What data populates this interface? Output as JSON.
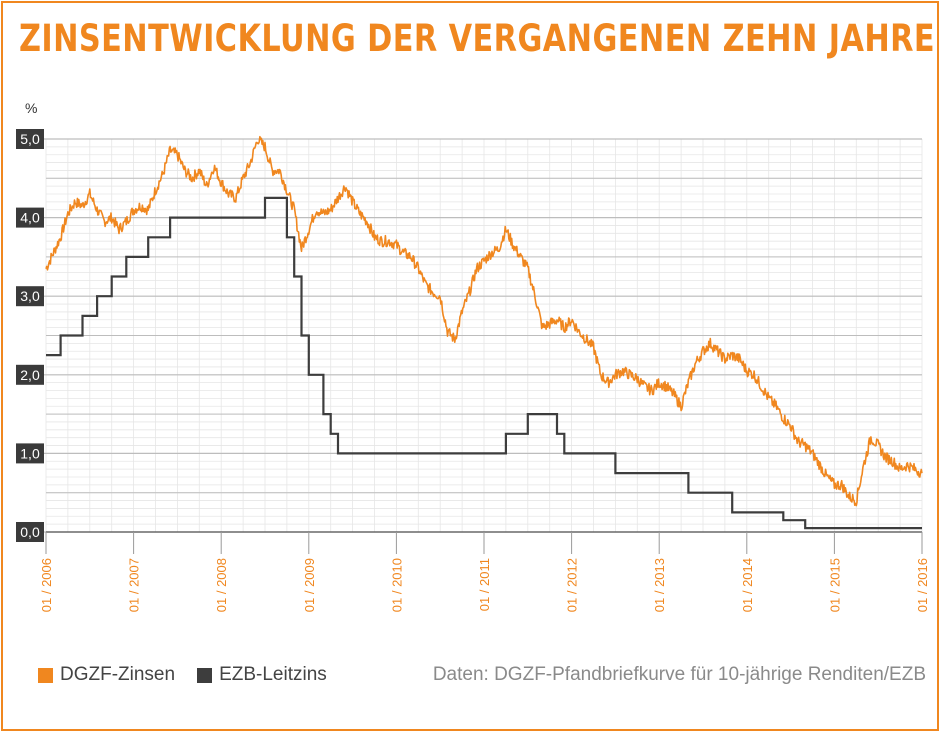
{
  "colors": {
    "accent": "#f0871f",
    "dgzf": "#f0871f",
    "ezb": "#3d3d3d",
    "grid_major": "#bdbdbd",
    "grid_minor": "#e6e6e6",
    "source_text": "#8a8a8a"
  },
  "chart_data": {
    "type": "line",
    "title": "ZINSENTWICKLUNG DER VERGANGENEN ZEHN JAHRE",
    "y_unit": "%",
    "ylim": [
      0,
      5
    ],
    "x_range": [
      "2006-01",
      "2016-01"
    ],
    "grid": true,
    "y_ticks": [
      "5,0",
      "4,0",
      "3,0",
      "2,0",
      "1,0",
      "0,0"
    ],
    "x_ticks": [
      "01 / 2006",
      "01 / 2007",
      "01 / 2008",
      "01 / 2009",
      "01 / 2010",
      "01 / 2011",
      "01 / 2012",
      "01 / 2013",
      "01 / 2014",
      "01 / 2015",
      "01 / 2016"
    ],
    "legend_position": "bottom-left",
    "series": [
      {
        "name": "DGZF-Zinsen",
        "kind": "line",
        "points": [
          [
            "2006-01",
            3.35
          ],
          [
            "2006-02",
            3.55
          ],
          [
            "2006-03",
            3.75
          ],
          [
            "2006-04",
            4.05
          ],
          [
            "2006-05",
            4.2
          ],
          [
            "2006-06",
            4.15
          ],
          [
            "2006-07",
            4.3
          ],
          [
            "2006-08",
            4.1
          ],
          [
            "2006-09",
            3.95
          ],
          [
            "2006-10",
            4.0
          ],
          [
            "2006-11",
            3.85
          ],
          [
            "2006-12",
            3.95
          ],
          [
            "2007-01",
            4.1
          ],
          [
            "2007-02",
            4.15
          ],
          [
            "2007-03",
            4.1
          ],
          [
            "2007-04",
            4.35
          ],
          [
            "2007-05",
            4.55
          ],
          [
            "2007-06",
            4.85
          ],
          [
            "2007-07",
            4.8
          ],
          [
            "2007-08",
            4.6
          ],
          [
            "2007-09",
            4.5
          ],
          [
            "2007-10",
            4.6
          ],
          [
            "2007-11",
            4.4
          ],
          [
            "2007-12",
            4.65
          ],
          [
            "2008-01",
            4.45
          ],
          [
            "2008-02",
            4.3
          ],
          [
            "2008-03",
            4.25
          ],
          [
            "2008-04",
            4.5
          ],
          [
            "2008-05",
            4.7
          ],
          [
            "2008-06",
            5.0
          ],
          [
            "2008-07",
            4.9
          ],
          [
            "2008-08",
            4.6
          ],
          [
            "2008-09",
            4.6
          ],
          [
            "2008-10",
            4.35
          ],
          [
            "2008-11",
            4.1
          ],
          [
            "2008-12",
            3.6
          ],
          [
            "2009-01",
            3.85
          ],
          [
            "2009-02",
            4.1
          ],
          [
            "2009-03",
            4.05
          ],
          [
            "2009-04",
            4.1
          ],
          [
            "2009-05",
            4.25
          ],
          [
            "2009-06",
            4.4
          ],
          [
            "2009-07",
            4.2
          ],
          [
            "2009-08",
            4.05
          ],
          [
            "2009-09",
            3.95
          ],
          [
            "2009-10",
            3.75
          ],
          [
            "2009-11",
            3.7
          ],
          [
            "2009-12",
            3.7
          ],
          [
            "2010-01",
            3.65
          ],
          [
            "2010-02",
            3.55
          ],
          [
            "2010-03",
            3.5
          ],
          [
            "2010-04",
            3.35
          ],
          [
            "2010-05",
            3.15
          ],
          [
            "2010-06",
            3.05
          ],
          [
            "2010-07",
            3.0
          ],
          [
            "2010-08",
            2.55
          ],
          [
            "2010-09",
            2.45
          ],
          [
            "2010-10",
            2.8
          ],
          [
            "2010-11",
            3.05
          ],
          [
            "2010-12",
            3.35
          ],
          [
            "2011-01",
            3.45
          ],
          [
            "2011-02",
            3.55
          ],
          [
            "2011-03",
            3.6
          ],
          [
            "2011-04",
            3.85
          ],
          [
            "2011-05",
            3.65
          ],
          [
            "2011-06",
            3.5
          ],
          [
            "2011-07",
            3.35
          ],
          [
            "2011-08",
            3.0
          ],
          [
            "2011-09",
            2.6
          ],
          [
            "2011-10",
            2.65
          ],
          [
            "2011-11",
            2.7
          ],
          [
            "2011-12",
            2.6
          ],
          [
            "2012-01",
            2.7
          ],
          [
            "2012-02",
            2.55
          ],
          [
            "2012-03",
            2.45
          ],
          [
            "2012-04",
            2.35
          ],
          [
            "2012-05",
            2.0
          ],
          [
            "2012-06",
            1.9
          ],
          [
            "2012-07",
            2.0
          ],
          [
            "2012-08",
            2.05
          ],
          [
            "2012-09",
            2.0
          ],
          [
            "2012-10",
            1.95
          ],
          [
            "2012-11",
            1.85
          ],
          [
            "2012-12",
            1.8
          ],
          [
            "2013-01",
            1.9
          ],
          [
            "2013-02",
            1.85
          ],
          [
            "2013-03",
            1.75
          ],
          [
            "2013-04",
            1.6
          ],
          [
            "2013-05",
            1.9
          ],
          [
            "2013-06",
            2.15
          ],
          [
            "2013-07",
            2.3
          ],
          [
            "2013-08",
            2.4
          ],
          [
            "2013-09",
            2.3
          ],
          [
            "2013-10",
            2.2
          ],
          [
            "2013-11",
            2.25
          ],
          [
            "2013-12",
            2.2
          ],
          [
            "2014-01",
            2.05
          ],
          [
            "2014-02",
            2.0
          ],
          [
            "2014-03",
            1.85
          ],
          [
            "2014-04",
            1.7
          ],
          [
            "2014-05",
            1.6
          ],
          [
            "2014-06",
            1.45
          ],
          [
            "2014-07",
            1.35
          ],
          [
            "2014-08",
            1.15
          ],
          [
            "2014-09",
            1.1
          ],
          [
            "2014-10",
            1.0
          ],
          [
            "2014-11",
            0.85
          ],
          [
            "2014-12",
            0.7
          ],
          [
            "2015-01",
            0.6
          ],
          [
            "2015-02",
            0.6
          ],
          [
            "2015-03",
            0.45
          ],
          [
            "2015-04",
            0.4
          ],
          [
            "2015-05",
            0.85
          ],
          [
            "2015-06",
            1.2
          ],
          [
            "2015-07",
            1.1
          ],
          [
            "2015-08",
            0.95
          ],
          [
            "2015-09",
            0.9
          ],
          [
            "2015-10",
            0.8
          ],
          [
            "2015-11",
            0.85
          ],
          [
            "2015-12",
            0.8
          ],
          [
            "2016-01",
            0.75
          ]
        ]
      },
      {
        "name": "EZB-Leitzins",
        "kind": "step",
        "points": [
          [
            "2006-01",
            2.25
          ],
          [
            "2006-03",
            2.5
          ],
          [
            "2006-06",
            2.75
          ],
          [
            "2006-08",
            3.0
          ],
          [
            "2006-10",
            3.25
          ],
          [
            "2006-12",
            3.5
          ],
          [
            "2007-03",
            3.75
          ],
          [
            "2007-06",
            4.0
          ],
          [
            "2008-07",
            4.25
          ],
          [
            "2008-10",
            3.75
          ],
          [
            "2008-11",
            3.25
          ],
          [
            "2008-12",
            2.5
          ],
          [
            "2009-01",
            2.0
          ],
          [
            "2009-03",
            1.5
          ],
          [
            "2009-04",
            1.25
          ],
          [
            "2009-05",
            1.0
          ],
          [
            "2011-04",
            1.25
          ],
          [
            "2011-07",
            1.5
          ],
          [
            "2011-11",
            1.25
          ],
          [
            "2011-12",
            1.0
          ],
          [
            "2012-07",
            0.75
          ],
          [
            "2013-05",
            0.5
          ],
          [
            "2013-11",
            0.25
          ],
          [
            "2014-06",
            0.15
          ],
          [
            "2014-09",
            0.05
          ],
          [
            "2016-01",
            0.05
          ]
        ]
      }
    ]
  },
  "legend": {
    "dgzf_label": "DGZF-Zinsen",
    "ezb_label": "EZB-Leitzins"
  },
  "source": "Daten: DGZF-Pfandbriefkurve für 10-jährige Renditen/EZB"
}
